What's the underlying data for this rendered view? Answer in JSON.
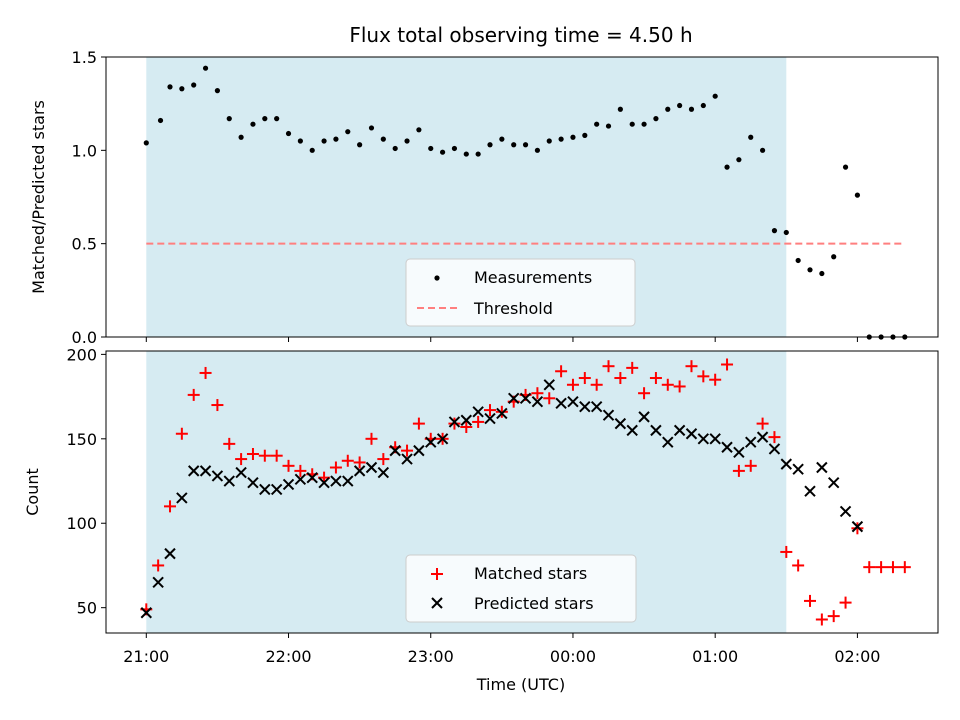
{
  "chart_data": [
    {
      "type": "scatter",
      "title": "Flux total observing time = 4.50 h",
      "xlabel": "",
      "ylabel": "Matched/Predicted stars",
      "ylim": [
        0,
        1.5
      ],
      "xlim": [
        "20:43",
        "02:34"
      ],
      "yticks": [
        "0.0",
        "0.5",
        "1.0",
        "1.5"
      ],
      "shaded_span": [
        "21:00",
        "01:30"
      ],
      "legend_position": "lower-center",
      "colors": {
        "measurements": "#000000",
        "threshold": "#ff7f7f",
        "shade": "#add8e6"
      },
      "series": [
        {
          "name": "Measurements",
          "x": [
            "21:00",
            "21:06",
            "21:10",
            "21:15",
            "21:20",
            "21:25",
            "21:30",
            "21:35",
            "21:40",
            "21:45",
            "21:50",
            "21:55",
            "22:00",
            "22:05",
            "22:10",
            "22:15",
            "22:20",
            "22:25",
            "22:30",
            "22:35",
            "22:40",
            "22:45",
            "22:50",
            "22:55",
            "23:00",
            "23:05",
            "23:10",
            "23:15",
            "23:20",
            "23:25",
            "23:30",
            "23:35",
            "23:40",
            "23:45",
            "23:50",
            "23:55",
            "00:00",
            "00:05",
            "00:10",
            "00:15",
            "00:20",
            "00:25",
            "00:30",
            "00:35",
            "00:40",
            "00:45",
            "00:50",
            "00:55",
            "01:00",
            "01:05",
            "01:10",
            "01:15",
            "01:20",
            "01:25",
            "01:30",
            "01:35",
            "01:40",
            "01:45",
            "01:50",
            "01:55",
            "02:00",
            "02:05",
            "02:10",
            "02:15",
            "02:20"
          ],
          "values": [
            1.04,
            1.16,
            1.34,
            1.33,
            1.35,
            1.44,
            1.32,
            1.17,
            1.07,
            1.14,
            1.17,
            1.17,
            1.09,
            1.05,
            1.0,
            1.05,
            1.06,
            1.1,
            1.03,
            1.12,
            1.06,
            1.01,
            1.05,
            1.11,
            1.01,
            0.99,
            1.01,
            0.98,
            0.98,
            1.03,
            1.06,
            1.03,
            1.03,
            1.0,
            1.05,
            1.06,
            1.07,
            1.08,
            1.14,
            1.13,
            1.22,
            1.14,
            1.14,
            1.17,
            1.22,
            1.24,
            1.22,
            1.24,
            1.29,
            0.91,
            0.95,
            1.07,
            1.0,
            0.57,
            0.56,
            0.41,
            0.36,
            0.34,
            0.43,
            0.91,
            0.76,
            0.0,
            0.0,
            0.0,
            0.0
          ]
        },
        {
          "name": "Threshold",
          "style": "dashed-line",
          "x": [
            "21:00",
            "02:20"
          ],
          "values": [
            0.5,
            0.5
          ]
        }
      ]
    },
    {
      "type": "scatter",
      "title": "",
      "xlabel": "Time (UTC)",
      "ylabel": "Count",
      "ylim": [
        35,
        202
      ],
      "xlim": [
        "20:43",
        "02:34"
      ],
      "xticks": [
        "21:00",
        "22:00",
        "23:00",
        "00:00",
        "01:00",
        "02:00"
      ],
      "yticks": [
        "50",
        "100",
        "150",
        "200"
      ],
      "shaded_span": [
        "21:00",
        "01:30"
      ],
      "legend_position": "lower-center",
      "colors": {
        "matched": "#ff0000",
        "predicted": "#000000",
        "shade": "#add8e6"
      },
      "series": [
        {
          "name": "Matched stars",
          "x": [
            "21:00",
            "21:05",
            "21:10",
            "21:15",
            "21:20",
            "21:25",
            "21:30",
            "21:35",
            "21:40",
            "21:45",
            "21:50",
            "21:55",
            "22:00",
            "22:05",
            "22:10",
            "22:15",
            "22:20",
            "22:25",
            "22:30",
            "22:35",
            "22:40",
            "22:45",
            "22:50",
            "22:55",
            "23:00",
            "23:05",
            "23:10",
            "23:15",
            "23:20",
            "23:25",
            "23:30",
            "23:35",
            "23:40",
            "23:45",
            "23:50",
            "23:55",
            "00:00",
            "00:05",
            "00:10",
            "00:15",
            "00:20",
            "00:25",
            "00:30",
            "00:35",
            "00:40",
            "00:45",
            "00:50",
            "00:55",
            "01:00",
            "01:05",
            "01:10",
            "01:15",
            "01:20",
            "01:25",
            "01:30",
            "01:35",
            "01:40",
            "01:45",
            "01:50",
            "01:55",
            "02:00",
            "02:05",
            "02:10",
            "02:15",
            "02:20"
          ],
          "values": [
            49,
            75,
            110,
            153,
            176,
            189,
            170,
            147,
            138,
            141,
            140,
            140,
            134,
            131,
            129,
            127,
            133,
            137,
            136,
            150,
            138,
            145,
            143,
            159,
            150,
            150,
            159,
            157,
            160,
            167,
            166,
            172,
            176,
            177,
            174,
            190,
            182,
            186,
            182,
            193,
            186,
            192,
            177,
            186,
            182,
            181,
            193,
            187,
            185,
            194,
            131,
            134,
            159,
            151,
            83,
            75,
            54,
            43,
            45,
            53,
            97,
            74,
            74,
            74,
            74
          ]
        },
        {
          "name": "Predicted stars",
          "x": [
            "21:00",
            "21:05",
            "21:10",
            "21:15",
            "21:20",
            "21:25",
            "21:30",
            "21:35",
            "21:40",
            "21:45",
            "21:50",
            "21:55",
            "22:00",
            "22:05",
            "22:10",
            "22:15",
            "22:20",
            "22:25",
            "22:30",
            "22:35",
            "22:40",
            "22:45",
            "22:50",
            "22:55",
            "23:00",
            "23:05",
            "23:10",
            "23:15",
            "23:20",
            "23:25",
            "23:30",
            "23:35",
            "23:40",
            "23:45",
            "23:50",
            "23:55",
            "00:00",
            "00:05",
            "00:10",
            "00:15",
            "00:20",
            "00:25",
            "00:30",
            "00:35",
            "00:40",
            "00:45",
            "00:50",
            "00:55",
            "01:00",
            "01:05",
            "01:10",
            "01:15",
            "01:20",
            "01:25",
            "01:30",
            "01:35",
            "01:40",
            "01:45",
            "01:50",
            "01:55",
            "02:00"
          ],
          "values": [
            47,
            65,
            82,
            115,
            131,
            131,
            128,
            125,
            130,
            124,
            120,
            120,
            123,
            126,
            127,
            124,
            125,
            125,
            131,
            133,
            130,
            143,
            138,
            143,
            148,
            150,
            160,
            161,
            166,
            162,
            165,
            174,
            174,
            172,
            182,
            171,
            172,
            169,
            169,
            164,
            159,
            155,
            163,
            155,
            148,
            155,
            153,
            150,
            150,
            145,
            142,
            148,
            151,
            144,
            135,
            132,
            119,
            133,
            124,
            107,
            98
          ]
        }
      ]
    }
  ]
}
